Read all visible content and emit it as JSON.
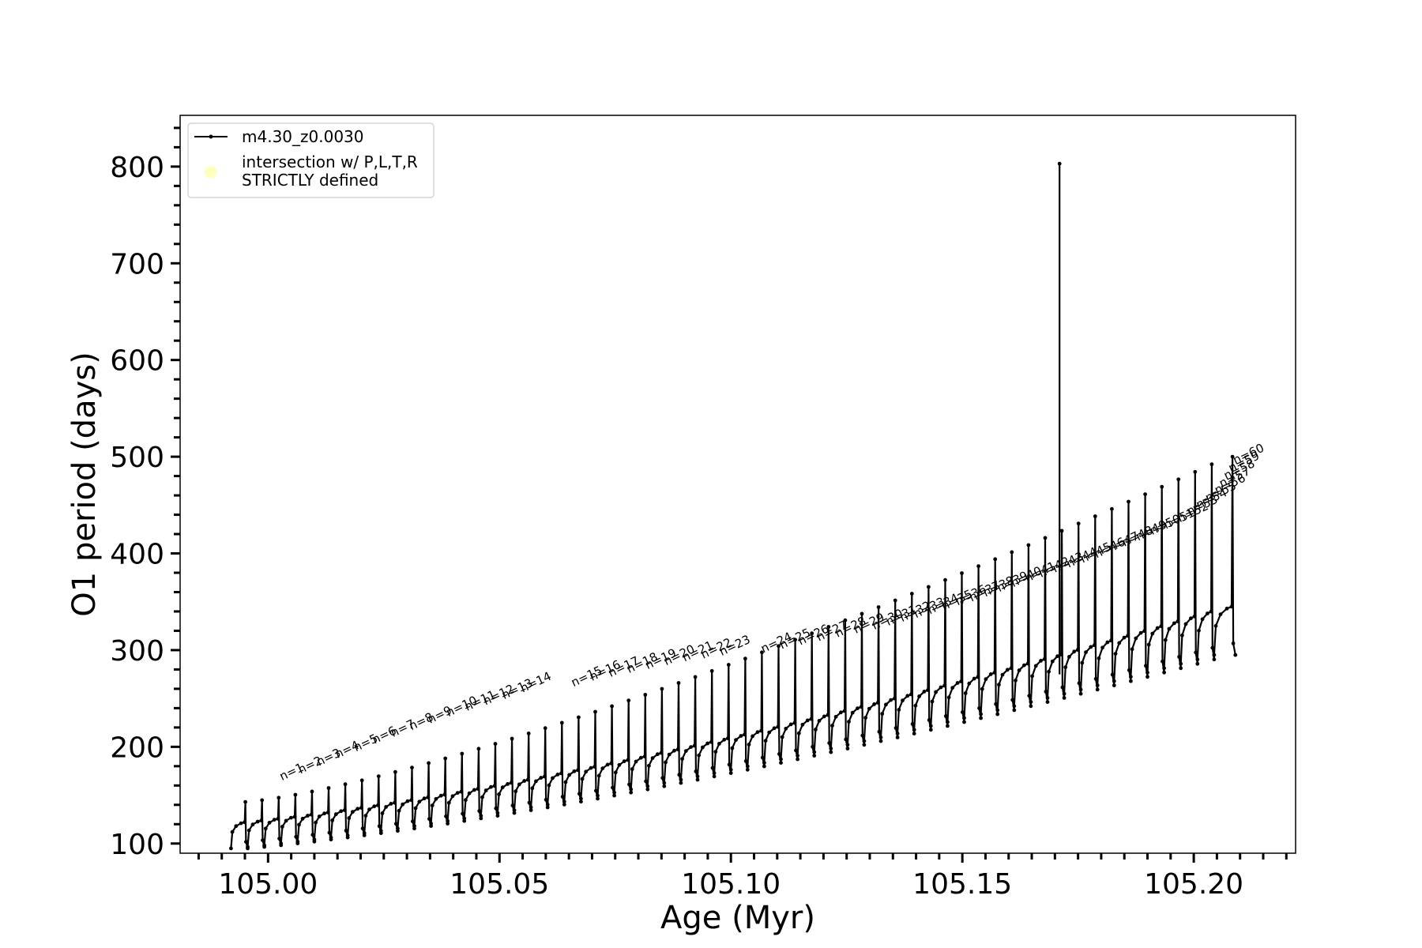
{
  "chart_data": {
    "type": "line",
    "title": "",
    "xlabel": "Age (Myr)",
    "ylabel": "O1 period (days)",
    "xlim": [
      104.981,
      105.222
    ],
    "ylim": [
      90,
      853
    ],
    "xticks": [
      105.0,
      105.05,
      105.1,
      105.15,
      105.2
    ],
    "xtick_labels": [
      "105.00",
      "105.05",
      "105.10",
      "105.15",
      "105.20"
    ],
    "yticks": [
      100,
      200,
      300,
      400,
      500,
      600,
      700,
      800
    ],
    "ytick_labels": [
      "100",
      "200",
      "300",
      "400",
      "500",
      "600",
      "700",
      "800"
    ],
    "x_minor_step": 0.005,
    "y_minor_step": 20,
    "grid": false,
    "legend_position": "top-left",
    "legend": [
      {
        "label": "m4.30_z0.0030",
        "marker": "line-dot",
        "color": "#000000"
      },
      {
        "label_line1": "intersection w/ P,L,T,R",
        "label_line2": "STRICTLY defined",
        "marker": "circle",
        "color": "#ffffc0"
      }
    ],
    "series": [
      {
        "name": "m4.30_z0.0030",
        "color": "#000000",
        "pulse_count": 60,
        "pulse_start_x": 104.992,
        "pulse_step_x": 0.0036,
        "x_end": 105.209,
        "low_start": 95,
        "low_end": 295,
        "base_start": 112,
        "base_end": 325,
        "high_start": 122,
        "high_end": 345,
        "peak_start": 143,
        "peak_end": 500,
        "spike": {
          "x": 105.171,
          "y": 803
        }
      }
    ],
    "annotations": [
      {
        "text": "n=1",
        "x": 105.003,
        "y": 165
      },
      {
        "text": "n=2",
        "x": 105.007,
        "y": 172
      },
      {
        "text": "n=3",
        "x": 105.011,
        "y": 180
      },
      {
        "text": "n=4",
        "x": 105.015,
        "y": 188
      },
      {
        "text": "n=5",
        "x": 105.019,
        "y": 195
      },
      {
        "text": "n=6",
        "x": 105.023,
        "y": 203
      },
      {
        "text": "n=7",
        "x": 105.027,
        "y": 210
      },
      {
        "text": "n=8",
        "x": 105.031,
        "y": 217
      },
      {
        "text": "n=9",
        "x": 105.035,
        "y": 224
      },
      {
        "text": "n=10",
        "x": 105.039,
        "y": 231
      },
      {
        "text": "n=11",
        "x": 105.043,
        "y": 237
      },
      {
        "text": "n=12",
        "x": 105.047,
        "y": 243
      },
      {
        "text": "n=13",
        "x": 105.051,
        "y": 249
      },
      {
        "text": "n=14",
        "x": 105.055,
        "y": 256
      },
      {
        "text": "n=15",
        "x": 105.066,
        "y": 262
      },
      {
        "text": "n=16",
        "x": 105.07,
        "y": 268
      },
      {
        "text": "n=17",
        "x": 105.074,
        "y": 272
      },
      {
        "text": "n=18",
        "x": 105.078,
        "y": 276
      },
      {
        "text": "n=19",
        "x": 105.082,
        "y": 280
      },
      {
        "text": "n=20",
        "x": 105.086,
        "y": 284
      },
      {
        "text": "n=21",
        "x": 105.09,
        "y": 288
      },
      {
        "text": "n=22",
        "x": 105.094,
        "y": 291
      },
      {
        "text": "n=23",
        "x": 105.098,
        "y": 294
      },
      {
        "text": "n=24",
        "x": 105.107,
        "y": 297
      },
      {
        "text": "n=25",
        "x": 105.111,
        "y": 301
      },
      {
        "text": "n=26",
        "x": 105.115,
        "y": 305
      },
      {
        "text": "n=27",
        "x": 105.119,
        "y": 309
      },
      {
        "text": "n=28",
        "x": 105.123,
        "y": 313
      },
      {
        "text": "n=29",
        "x": 105.127,
        "y": 317
      },
      {
        "text": "n=30",
        "x": 105.131,
        "y": 321
      },
      {
        "text": "n=31",
        "x": 105.134,
        "y": 325
      },
      {
        "text": "n=32",
        "x": 105.137,
        "y": 329
      },
      {
        "text": "n=33",
        "x": 105.14,
        "y": 333
      },
      {
        "text": "n=34",
        "x": 105.143,
        "y": 337
      },
      {
        "text": "n=35",
        "x": 105.146,
        "y": 341
      },
      {
        "text": "n=36",
        "x": 105.149,
        "y": 346
      },
      {
        "text": "n=37",
        "x": 105.152,
        "y": 350
      },
      {
        "text": "n=38",
        "x": 105.155,
        "y": 355
      },
      {
        "text": "n=39",
        "x": 105.158,
        "y": 360
      },
      {
        "text": "n=40",
        "x": 105.161,
        "y": 365
      },
      {
        "text": "n=41",
        "x": 105.164,
        "y": 370
      },
      {
        "text": "n=42",
        "x": 105.167,
        "y": 375
      },
      {
        "text": "n=43",
        "x": 105.17,
        "y": 380
      },
      {
        "text": "n=44",
        "x": 105.173,
        "y": 385
      },
      {
        "text": "n=45",
        "x": 105.176,
        "y": 390
      },
      {
        "text": "n=46",
        "x": 105.179,
        "y": 395
      },
      {
        "text": "n=47",
        "x": 105.182,
        "y": 401
      },
      {
        "text": "n=48",
        "x": 105.185,
        "y": 407
      },
      {
        "text": "n=49",
        "x": 105.188,
        "y": 413
      },
      {
        "text": "n=50",
        "x": 105.191,
        "y": 419
      },
      {
        "text": "n=51",
        "x": 105.194,
        "y": 425
      },
      {
        "text": "n=52",
        "x": 105.197,
        "y": 432
      },
      {
        "text": "n=53",
        "x": 105.199,
        "y": 439
      },
      {
        "text": "n=54",
        "x": 105.201,
        "y": 446
      },
      {
        "text": "n=55",
        "x": 105.203,
        "y": 453
      },
      {
        "text": "n=56",
        "x": 105.205,
        "y": 461
      },
      {
        "text": "n=57",
        "x": 105.206,
        "y": 468
      },
      {
        "text": "n=58",
        "x": 105.207,
        "y": 476
      },
      {
        "text": "n=59",
        "x": 105.208,
        "y": 484
      },
      {
        "text": "n=60",
        "x": 105.209,
        "y": 492
      }
    ]
  }
}
